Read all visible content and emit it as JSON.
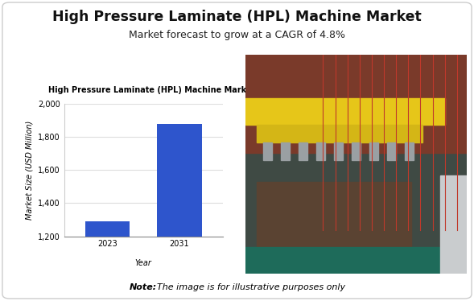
{
  "header": {
    "title": "High Pressure Laminate (HPL) Machine Market",
    "subtitle": "Market forecast to grow at a CAGR of 4.8%"
  },
  "note": "Note:The image is for illustrative purposes only",
  "chart_data": {
    "type": "bar",
    "title": "High Pressure Laminate (HPL) Machine Market Size",
    "x_label": "Year",
    "y_label": "Market Size (USD Million)",
    "categories": [
      "2023",
      "2031"
    ],
    "values": [
      1290,
      1880
    ],
    "color": "#2e55cc",
    "ylim": [
      1200,
      2000
    ],
    "yticks": [
      {
        "value": 1200,
        "label": "1,200"
      },
      {
        "value": 1400,
        "label": "1,400"
      },
      {
        "value": 1600,
        "label": "1,600"
      },
      {
        "value": 1800,
        "label": "1,800"
      },
      {
        "value": 2000,
        "label": "2,000"
      }
    ],
    "grid": true
  }
}
